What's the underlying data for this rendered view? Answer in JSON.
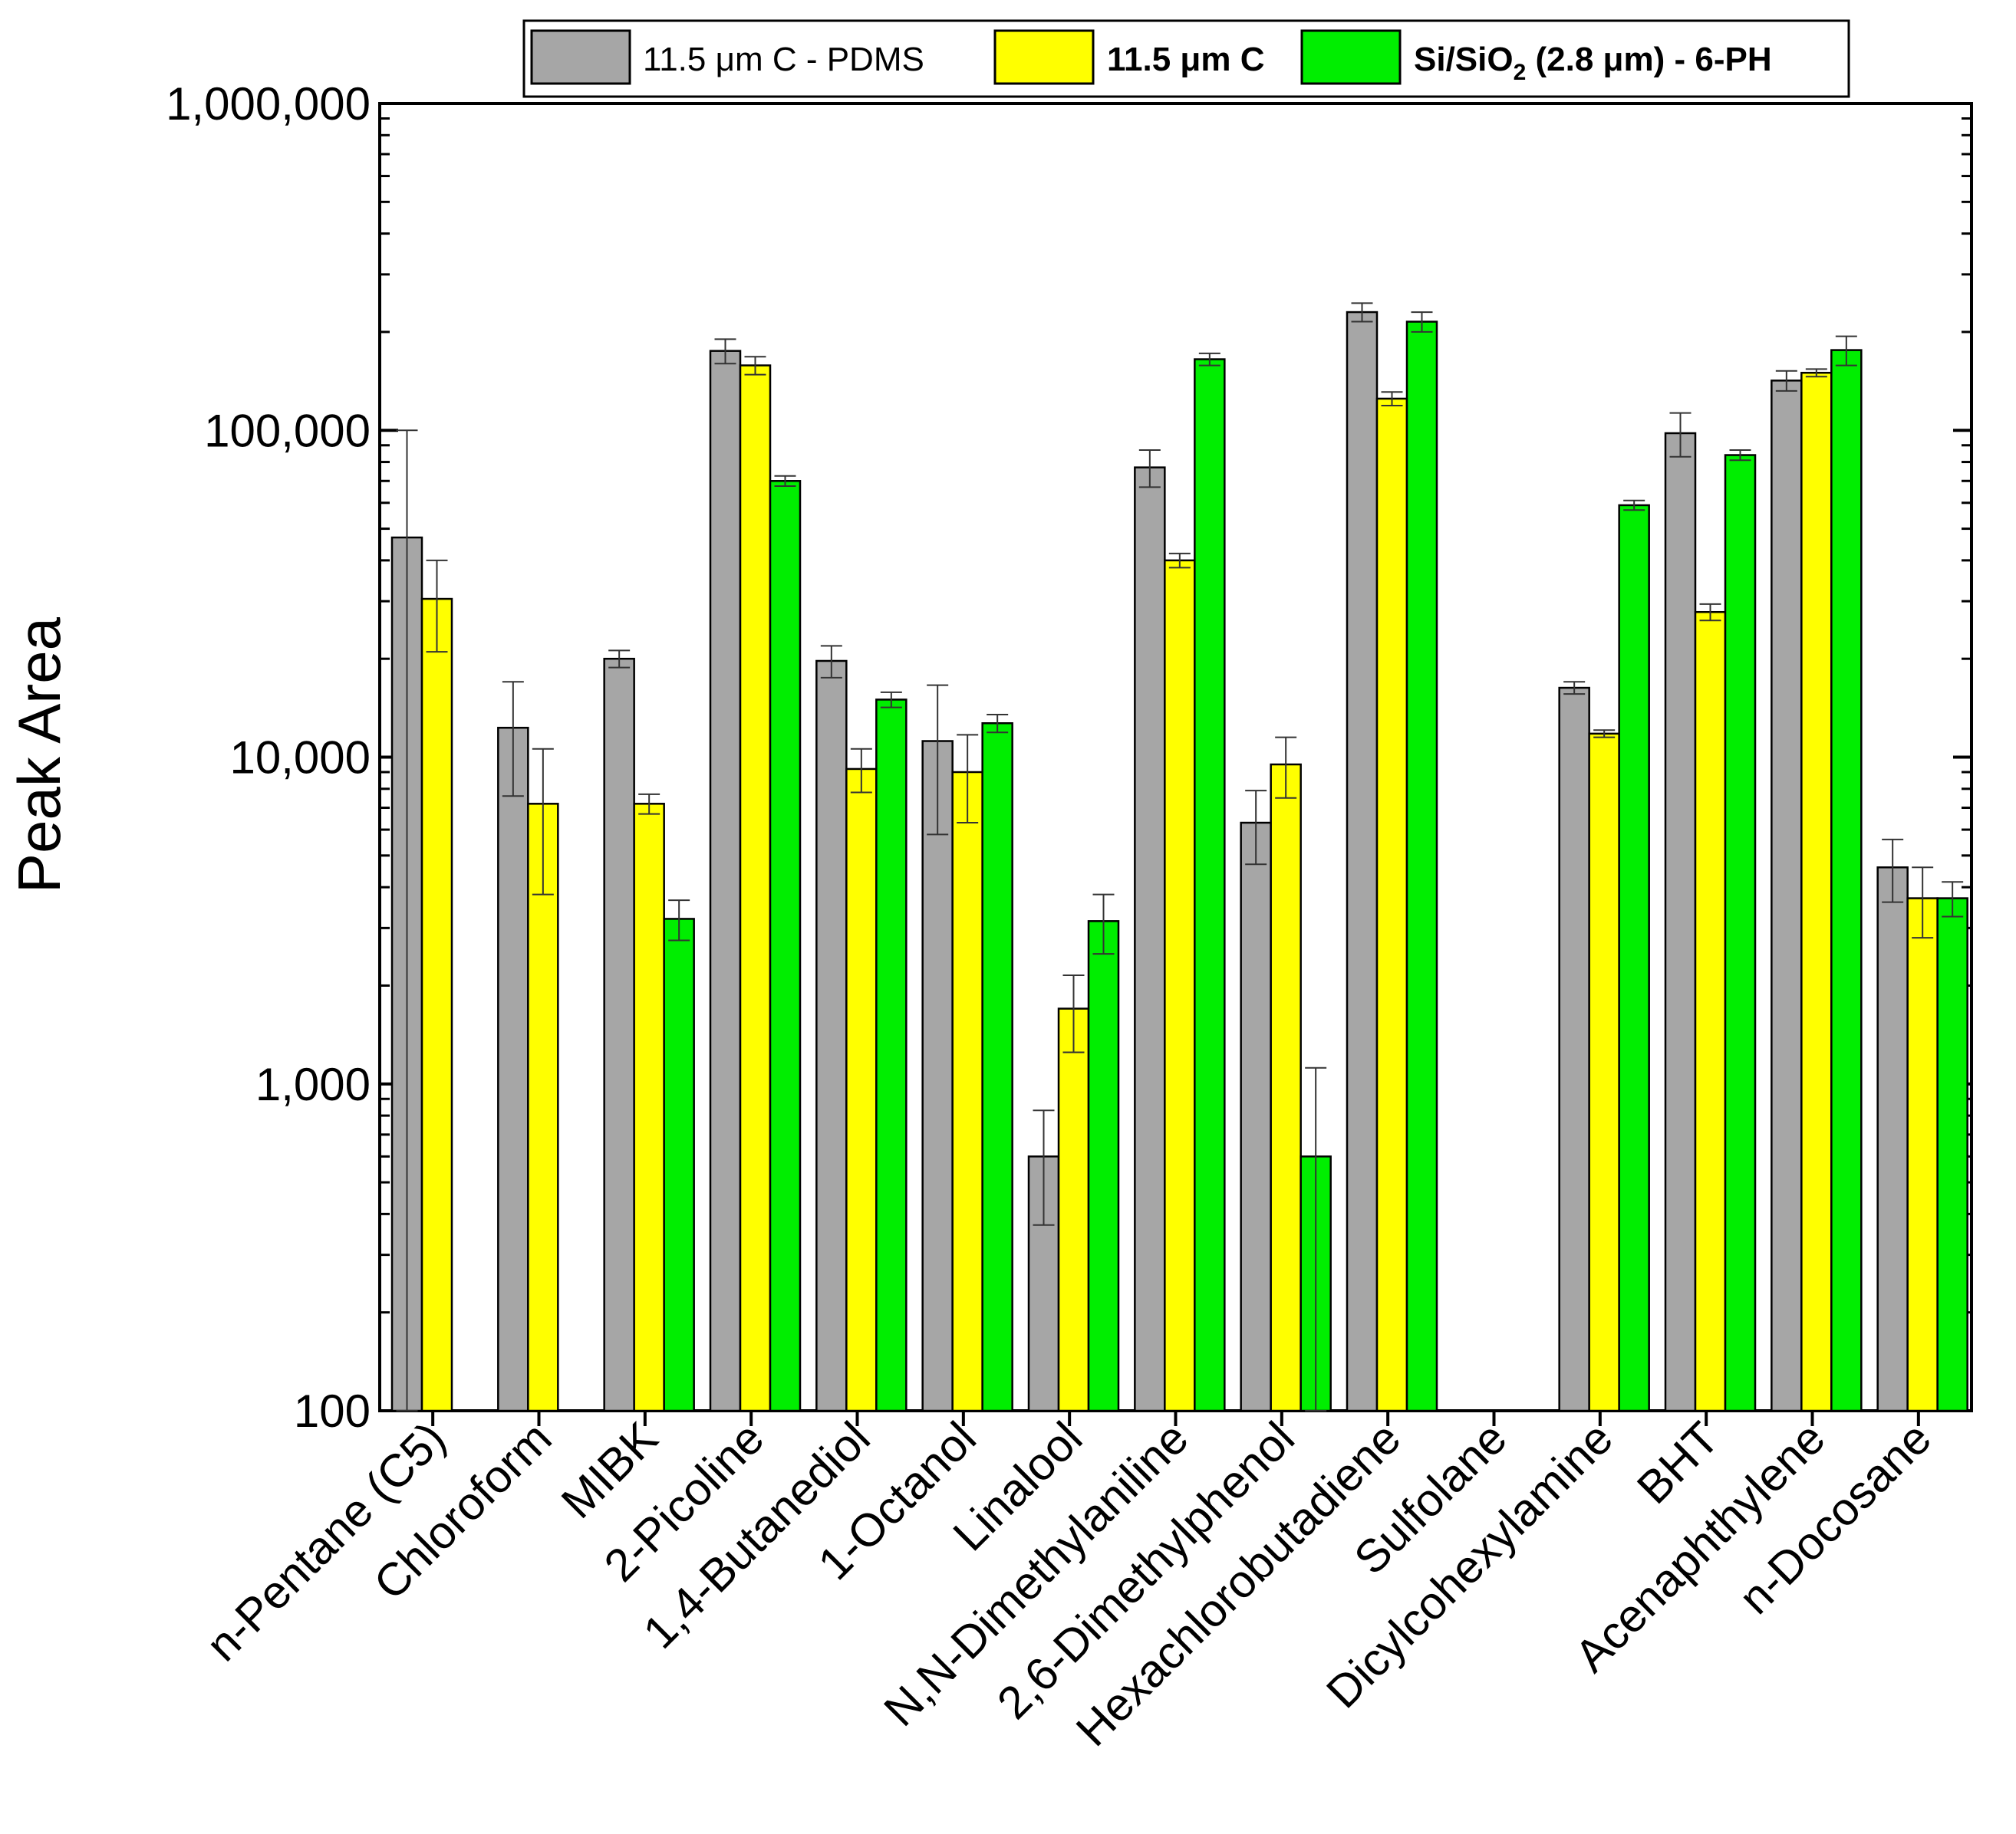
{
  "chart_data": {
    "type": "bar",
    "title": "",
    "xlabel": "",
    "ylabel": "Peak Area",
    "yscale": "log",
    "ylim": [
      100,
      1000000
    ],
    "grid": false,
    "legend_position": "top",
    "ytick_values": [
      100,
      1000,
      10000,
      100000,
      1000000
    ],
    "ytick_labels": [
      "100",
      "1,000",
      "10,000",
      "100,000",
      "1,000,000"
    ],
    "categories": [
      "n-Pentane (C5)",
      "Chloroform",
      "MIBK",
      "2-Picoline",
      "1,4-Butanediol",
      "1-Octanol",
      "Linalool",
      "N,N-Dimethylaniline",
      "2,6-Dimethylphenol",
      "Hexachlorobutadiene",
      "Sulfolane",
      "Dicylcohexylamine",
      "BHT",
      "Acenaphthylene",
      "n-Docosane"
    ],
    "series": [
      {
        "name": "11.5 μm C - PDMS",
        "color": "#a6a6a6",
        "values": [
          47000,
          12300,
          20000,
          175000,
          19700,
          11200,
          600,
          77000,
          6300,
          230000,
          null,
          16300,
          98000,
          142000,
          4600
        ],
        "errors": [
          53000,
          4700,
          1200,
          15000,
          2200,
          5400,
          230,
          10000,
          1600,
          15000,
          null,
          700,
          15000,
          10000,
          1000
        ]
      },
      {
        "name": "11.5 μm C",
        "color": "#ffff00",
        "values": [
          30500,
          7200,
          7200,
          158000,
          9200,
          9000,
          1700,
          40000,
          9500,
          125000,
          null,
          11800,
          27800,
          150000,
          3700
        ],
        "errors": [
          9500,
          3400,
          500,
          10000,
          1400,
          2700,
          450,
          2000,
          2000,
          6000,
          null,
          300,
          1600,
          4000,
          900
        ]
      },
      {
        "name": "Si/SiO2 (2.8 μm) - 6-PH",
        "color": "#00ee00",
        "values": [
          null,
          null,
          3200,
          70000,
          15000,
          12700,
          3150,
          165000,
          600,
          215000,
          null,
          59000,
          84000,
          176000,
          3700
        ],
        "errors": [
          null,
          null,
          450,
          2500,
          800,
          800,
          650,
          7000,
          520,
          15000,
          null,
          2000,
          3000,
          18000,
          450
        ]
      }
    ]
  },
  "legend": {
    "items": [
      {
        "text": "11.5 μm C - PDMS",
        "bold": false
      },
      {
        "text": "11.5 μm C",
        "bold": true
      },
      {
        "sub_parts": [
          "Si/SiO",
          "2",
          " (2.8 μm) - 6-PH"
        ],
        "bold": true
      }
    ]
  }
}
